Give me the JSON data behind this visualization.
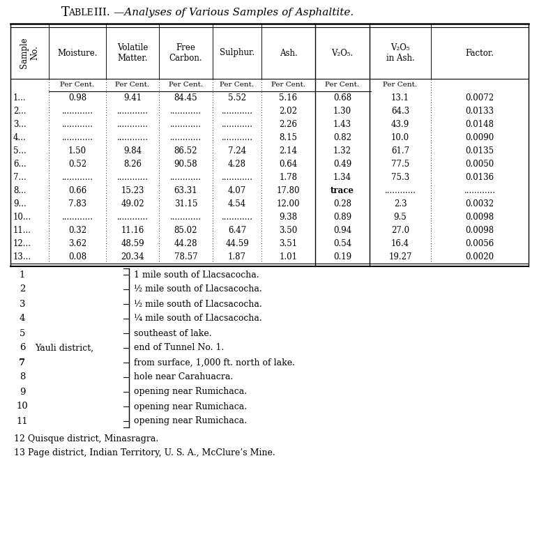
{
  "title_sc": "Table III.",
  "title_italic": "—Analyses of Various Samples of Asphaltite.",
  "col_dividers": [
    15,
    70,
    152,
    228,
    305,
    375,
    452,
    530,
    618,
    758
  ],
  "headers": [
    "Moisture.",
    "Volatile\nMatter.",
    "Free\nCarbon.",
    "Sulphur.",
    "Ash.",
    "V₂O₅.",
    "V₂O₅\nin Ash.",
    "Factor."
  ],
  "per_cent_cols": [
    0,
    1,
    2,
    3,
    4,
    5,
    6
  ],
  "rows": [
    [
      "1...",
      "0.98",
      "9.41",
      "84.45",
      "5.52",
      "5.16",
      "0.68",
      "13.1",
      "0.0072"
    ],
    [
      "2...",
      "............",
      "............",
      "............",
      "............",
      "2.02",
      "1.30",
      "64.3",
      "0.0133"
    ],
    [
      "3...",
      "............",
      "............",
      "............",
      "............",
      "2.26",
      "1.43",
      "43.9",
      "0.0148"
    ],
    [
      "4...",
      "............",
      "............",
      "............",
      "............",
      "8.15",
      "0.82",
      "10.0",
      "0.0090"
    ],
    [
      "5...",
      "1.50",
      "9.84",
      "86.52",
      "7.24",
      "2.14",
      "1.32",
      "61.7",
      "0.0135"
    ],
    [
      "6...",
      "0.52",
      "8.26",
      "90.58",
      "4.28",
      "0.64",
      "0.49",
      "77.5",
      "0.0050"
    ],
    [
      "7...",
      "............",
      "............",
      "............",
      "............",
      "1.78",
      "1.34",
      "75.3",
      "0.0136"
    ],
    [
      "8...",
      "0.66",
      "15.23",
      "63.31",
      "4.07",
      "17.80",
      "trace",
      "............",
      "............"
    ],
    [
      "9...",
      "7.83",
      "49.02",
      "31.15",
      "4.54",
      "12.00",
      "0.28",
      "2.3",
      "0.0032"
    ],
    [
      "10...",
      "............",
      "............",
      "............",
      "............",
      "9.38",
      "0.89",
      "9.5",
      "0.0098"
    ],
    [
      "11...",
      "0.32",
      "11.16",
      "85.02",
      "6.47",
      "3.50",
      "0.94",
      "27.0",
      "0.0098"
    ],
    [
      "12...",
      "3.62",
      "48.59",
      "44.28",
      "44.59",
      "3.51",
      "0.54",
      "16.4",
      "0.0056"
    ],
    [
      "13...",
      "0.08",
      "20.34",
      "78.57",
      "1.87",
      "1.01",
      "0.19",
      "19.27",
      "0.0020"
    ]
  ],
  "bracket_entries": [
    [
      1,
      "",
      "1 mile south of Llacsacocha.",
      false
    ],
    [
      2,
      "",
      "½ mile south of Llacsacocha.",
      false
    ],
    [
      3,
      "",
      "½ mile south of Llacsacocha.",
      false
    ],
    [
      4,
      "",
      "¼ mile south of Llacsacocha.",
      false
    ],
    [
      5,
      "",
      "southeast of lake.",
      false
    ],
    [
      6,
      "Yauli district,",
      "end of Tunnel No. 1.",
      false
    ],
    [
      7,
      "",
      "from surface, 1,000 ft. north of lake.",
      true
    ],
    [
      8,
      "",
      "hole near Carahuacra.",
      false
    ],
    [
      9,
      "",
      "opening near Rumichaca.",
      false
    ],
    [
      10,
      "",
      "opening near Rumichaca.",
      false
    ],
    [
      11,
      "",
      "opening near Rumichaca.",
      false
    ]
  ],
  "footnotes_plain": [
    "12 Quisque district, Minasragra.",
    "13 Page district, Indian Territory, U. S. A., McClure’s Mine."
  ],
  "bg_color": "#ffffff"
}
